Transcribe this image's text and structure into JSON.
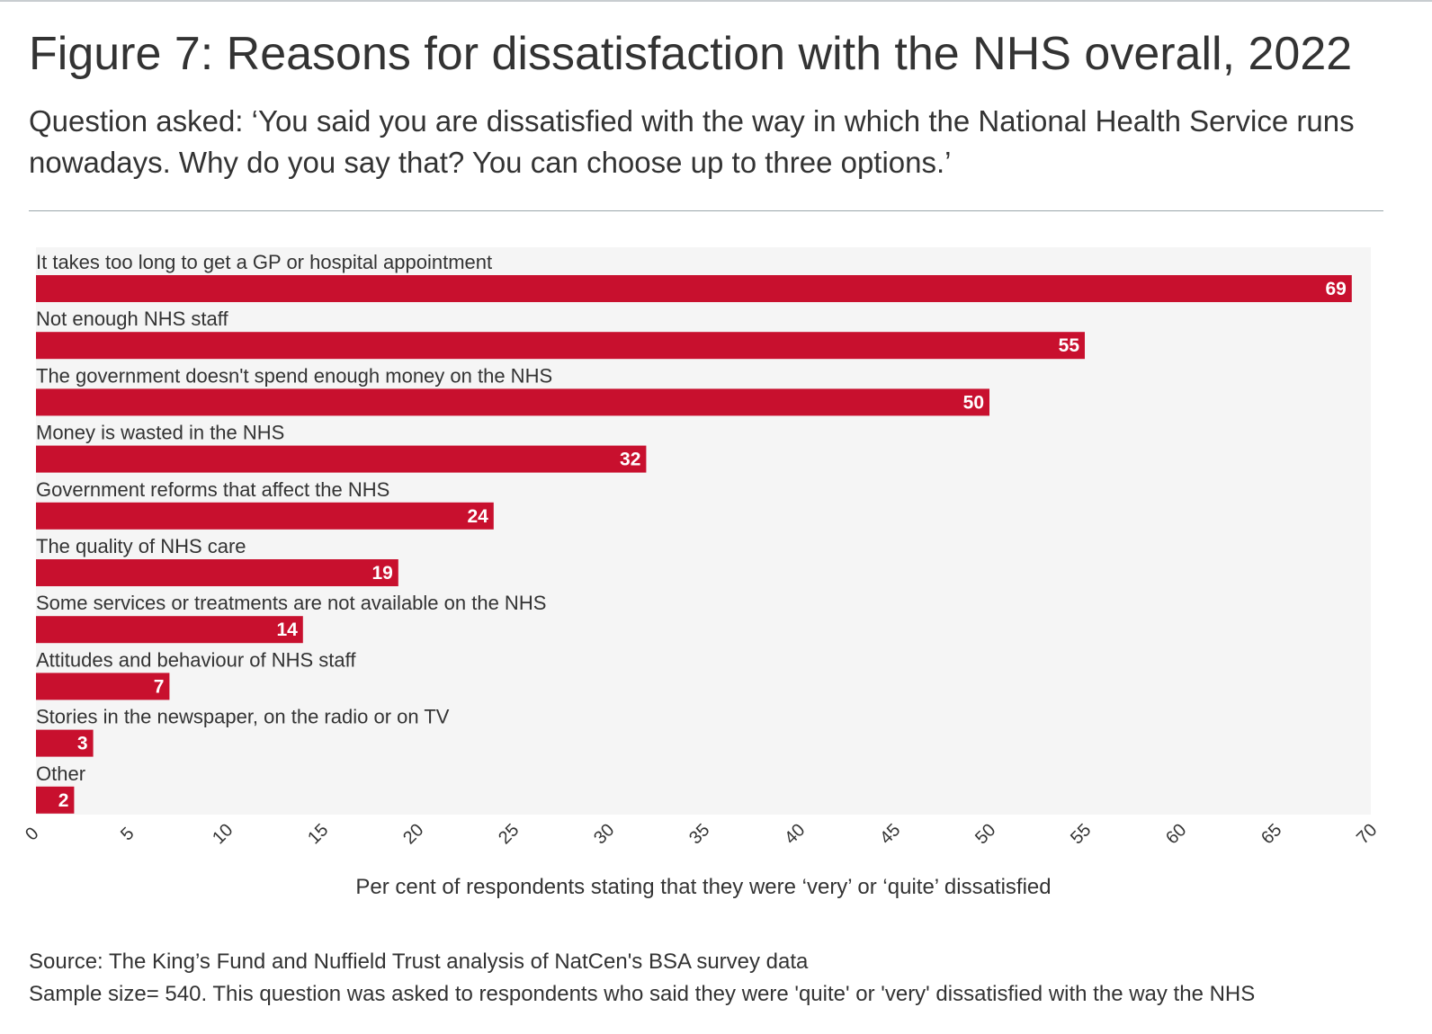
{
  "figure": {
    "title": "Figure 7: Reasons for dissatisfaction with the NHS overall, 2022",
    "subtitle": "Question asked: ‘You said you are dissatisfied with the way in which the National Health Service runs nowadays. Why do you say that? You can choose up to three options.’",
    "source": "Source: The King’s Fund and Nuffield Trust analysis of NatCen's BSA survey data",
    "note": "Sample size= 540. This question was asked to respondents who said they were 'quite' or 'very' dissatisfied with the way the NHS"
  },
  "colors": {
    "bar": "#c8102e",
    "plot_background": "#f5f5f5",
    "text": "#333333"
  },
  "chart_data": {
    "type": "bar",
    "orientation": "horizontal",
    "categories": [
      "It takes too long to get a GP or hospital appointment",
      "Not enough NHS staff",
      "The government doesn't spend enough money on the NHS",
      "Money is wasted in the NHS",
      "Government reforms that affect the NHS",
      "The quality of NHS care",
      "Some services or treatments are not available on the NHS",
      "Attitudes and behaviour of NHS staff",
      "Stories in the newspaper, on the radio or on TV",
      "Other"
    ],
    "values": [
      69,
      55,
      50,
      32,
      24,
      19,
      14,
      7,
      3,
      2
    ],
    "xlabel": "Per cent of respondents stating that they were ‘very’ or ‘quite’ dissatisfied",
    "ylabel": "",
    "xlim": [
      0,
      70
    ],
    "xticks": [
      0,
      5,
      10,
      15,
      20,
      25,
      30,
      35,
      40,
      45,
      50,
      55,
      60,
      65,
      70
    ],
    "grid": false,
    "legend": "none"
  }
}
